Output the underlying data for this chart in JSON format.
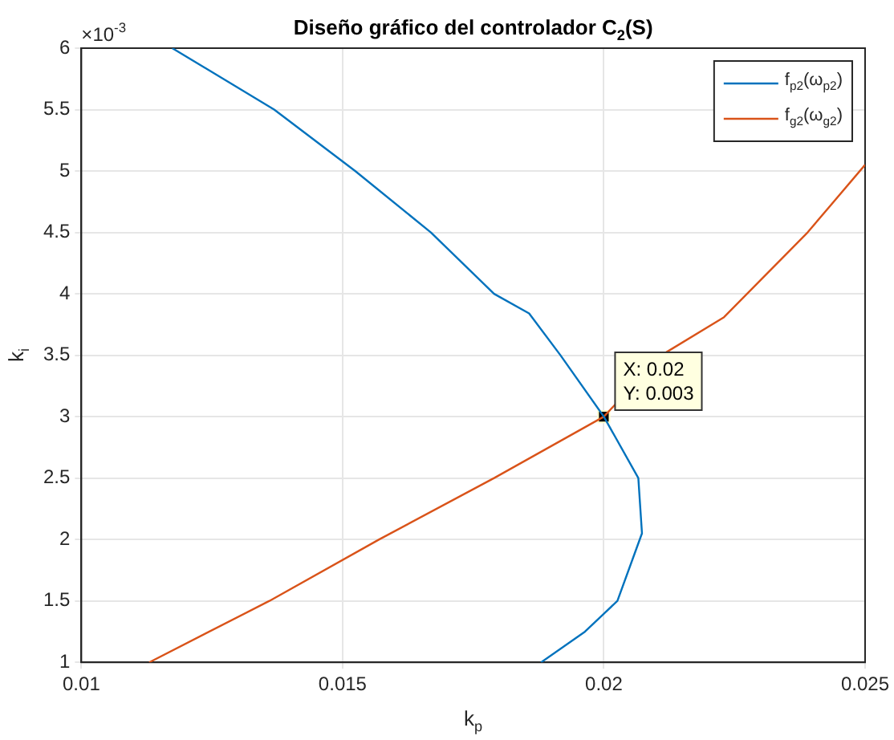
{
  "chart_data": {
    "type": "line",
    "title": "Diseño gráfico del controlador C$_{2}$(S)",
    "xlabel": "k$_{p}$",
    "ylabel": "k$_{i}$",
    "xlim": [
      0.01,
      0.025
    ],
    "xticks": [
      0.01,
      0.015,
      0.02,
      0.025
    ],
    "ylim": [
      1,
      6
    ],
    "yticks": [
      1,
      1.5,
      2,
      2.5,
      3,
      3.5,
      4,
      4.5,
      5,
      5.5,
      6
    ],
    "grid": true,
    "legend": "top right",
    "marker": "none",
    "line_style": "solid",
    "series": [
      {
        "name": "f$_{p2}$(ω$_{p2}$)",
        "color": "#0072bd",
        "x": [
          0.01174,
          0.01369,
          0.01524,
          0.01669,
          0.0179,
          0.01857,
          0.01917,
          0.02,
          0.02066,
          0.02073,
          0.02026,
          0.01964,
          0.0188
        ],
        "values": [
          6,
          5.5,
          5,
          4.5,
          4,
          3.84,
          3.5,
          3,
          2.5,
          2.05,
          1.5,
          1.25,
          1
        ]
      },
      {
        "name": "f$_{g2}$(ω$_{g2}$)",
        "color": "#d95319",
        "x": [
          0.0113,
          0.0136,
          0.0157,
          0.0179,
          0.02,
          0.0211,
          0.0223,
          0.0239,
          0.025
        ],
        "values": [
          1,
          1.5,
          2,
          2.5,
          3,
          3.5,
          3.81,
          4.5,
          5.05
        ]
      },
      {
        "type": "scatter",
        "marker": "square",
        "color": "#000000",
        "x": [
          0.02
        ],
        "values": [
          3
        ]
      }
    ],
    "annotations": [
      "×10$^{-3}$",
      {
        "text": "X: 0.02\nY: 0.003",
        "x": 0.02,
        "y": 3
      }
    ]
  }
}
